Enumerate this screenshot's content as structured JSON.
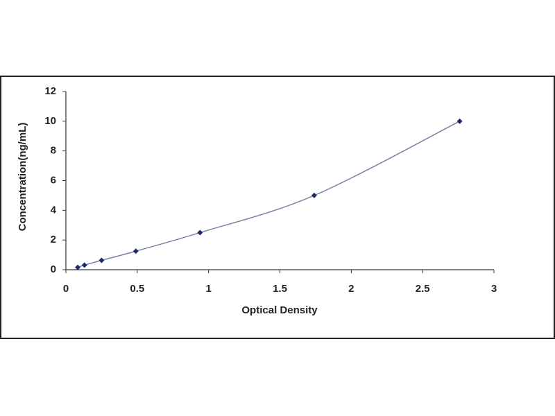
{
  "chart_data": {
    "type": "scatter",
    "x_label": "Optical Density",
    "y_label": "Concentration(ng/mL)",
    "x": [
      0.083,
      0.13,
      0.25,
      0.49,
      0.94,
      1.74,
      2.76
    ],
    "values": [
      0.16,
      0.31,
      0.63,
      1.25,
      2.5,
      5,
      10
    ],
    "color": "#1f2a6b",
    "line_color": "#7585a8",
    "xlim": [
      0,
      3
    ],
    "xticks": [
      0,
      0.5,
      1,
      1.5,
      2,
      2.5,
      3
    ],
    "ylim": [
      0,
      12
    ],
    "yticks": [
      0,
      2,
      4,
      6,
      8,
      10,
      12
    ],
    "grid": false
  }
}
